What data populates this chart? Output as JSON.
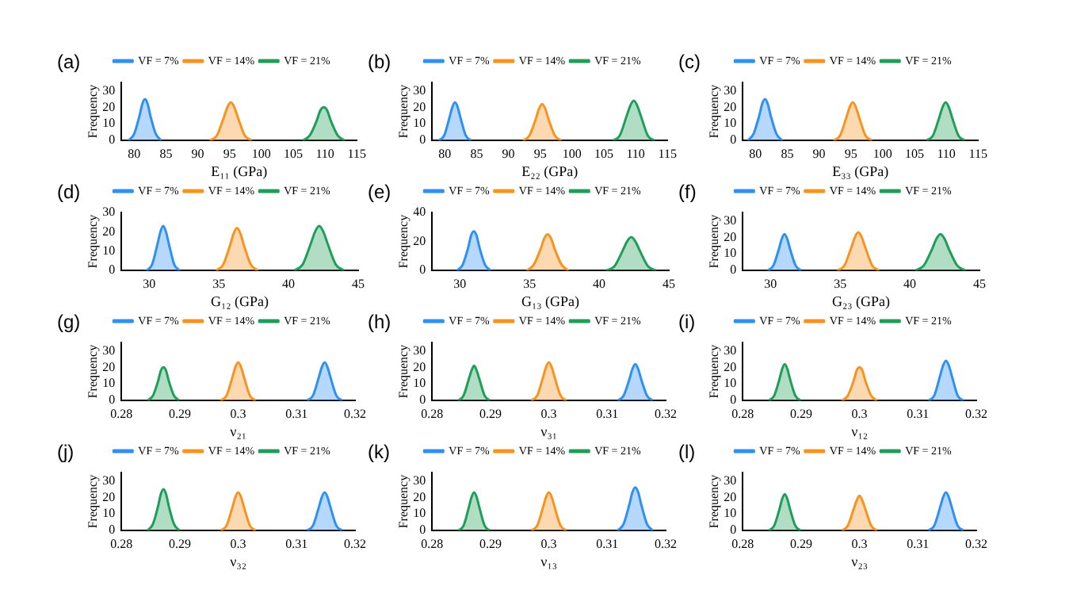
{
  "chart_data": [
    {
      "type": "area",
      "title": "(a)",
      "xlabel": "E₁₁ (GPa)",
      "ylabel": "Frequency",
      "xlim": [
        78,
        115
      ],
      "xticks": [
        80,
        85,
        90,
        95,
        100,
        105,
        110,
        115
      ],
      "ylim": [
        0,
        35
      ],
      "yticks": [
        0,
        10,
        20,
        30
      ],
      "legend": "top",
      "series": [
        {
          "name": "VF = 7%",
          "color": "#2e8ff5",
          "x": [
            79.15,
            80.0,
            80.85,
            81.28,
            81.7,
            82.13,
            82.55,
            83.4,
            84.25
          ],
          "values": [
            0,
            4,
            15,
            22,
            25,
            22,
            15,
            4,
            0
          ]
        },
        {
          "name": "VF = 14%",
          "color": "#f7931e",
          "x": [
            91.9,
            93.0,
            94.1,
            94.65,
            95.2,
            95.75,
            96.3,
            97.4,
            98.5
          ],
          "values": [
            0,
            3,
            14,
            20,
            23,
            20,
            14,
            3,
            0
          ]
        },
        {
          "name": "VF = 21%",
          "color": "#1f9e5a",
          "x": [
            106.5,
            107.6,
            108.7,
            109.25,
            109.8,
            110.35,
            110.9,
            112.0,
            113.1
          ],
          "values": [
            0,
            3,
            12,
            18,
            20,
            18,
            12,
            3,
            0
          ]
        }
      ]
    },
    {
      "type": "area",
      "title": "(b)",
      "xlabel": "E₂₂ (GPa)",
      "ylabel": "Frequency",
      "xlim": [
        78,
        115
      ],
      "xticks": [
        80,
        85,
        90,
        95,
        100,
        105,
        110,
        115
      ],
      "ylim": [
        0,
        35
      ],
      "yticks": [
        0,
        10,
        20,
        30
      ],
      "legend": "top",
      "series": [
        {
          "name": "VF = 7%",
          "color": "#2e8ff5",
          "x": [
            79.05,
            79.9,
            80.75,
            81.18,
            81.6,
            82.03,
            82.45,
            83.3,
            84.15
          ],
          "values": [
            0,
            3,
            14,
            20,
            23,
            20,
            14,
            3,
            0
          ]
        },
        {
          "name": "VF = 14%",
          "color": "#f7931e",
          "x": [
            92.3,
            93.3,
            94.3,
            94.8,
            95.3,
            95.8,
            96.3,
            97.3,
            98.3
          ],
          "values": [
            0,
            3,
            13,
            19,
            22,
            19,
            13,
            3,
            0
          ]
        },
        {
          "name": "VF = 21%",
          "color": "#1f9e5a",
          "x": [
            106.4,
            107.5,
            108.6,
            109.15,
            109.7,
            110.25,
            110.8,
            111.9,
            113.0
          ],
          "values": [
            0,
            3,
            15,
            21,
            24,
            21,
            15,
            3,
            0
          ]
        }
      ]
    },
    {
      "type": "area",
      "title": "(c)",
      "xlabel": "E₃₃ (GPa)",
      "ylabel": "Frequency",
      "xlim": [
        78,
        115
      ],
      "xticks": [
        80,
        85,
        90,
        95,
        100,
        105,
        110,
        115
      ],
      "ylim": [
        0,
        35
      ],
      "yticks": [
        0,
        10,
        20,
        30
      ],
      "legend": "top",
      "series": [
        {
          "name": "VF = 7%",
          "color": "#2e8ff5",
          "x": [
            78.8,
            79.7,
            80.6,
            81.05,
            81.5,
            81.95,
            82.4,
            83.3,
            84.2
          ],
          "values": [
            0,
            4,
            15,
            22,
            25,
            22,
            15,
            4,
            0
          ]
        },
        {
          "name": "VF = 14%",
          "color": "#f7931e",
          "x": [
            92.3,
            93.3,
            94.3,
            94.8,
            95.3,
            95.8,
            96.3,
            97.3,
            98.3
          ],
          "values": [
            0,
            3,
            14,
            20,
            23,
            20,
            14,
            3,
            0
          ]
        },
        {
          "name": "VF = 21%",
          "color": "#1f9e5a",
          "x": [
            106.9,
            107.9,
            108.9,
            109.4,
            109.9,
            110.4,
            110.9,
            111.9,
            112.9
          ],
          "values": [
            0,
            3,
            14,
            20,
            23,
            20,
            14,
            3,
            0
          ]
        }
      ]
    },
    {
      "type": "area",
      "title": "(d)",
      "xlabel": "G₁₂ (GPa)",
      "ylabel": "Frequency",
      "xlim": [
        28,
        45
      ],
      "xticks": [
        30,
        35,
        40,
        45
      ],
      "ylim": [
        0,
        30
      ],
      "yticks": [
        0,
        10,
        20,
        30
      ],
      "legend": "top",
      "series": [
        {
          "name": "VF = 7%",
          "color": "#2e8ff5",
          "x": [
            29.8,
            30.2,
            30.6,
            30.8,
            31.0,
            31.2,
            31.4,
            31.8,
            32.2
          ],
          "values": [
            0,
            3,
            14,
            20,
            23,
            20,
            14,
            3,
            0
          ]
        },
        {
          "name": "VF = 14%",
          "color": "#f7931e",
          "x": [
            34.8,
            35.3,
            35.8,
            36.05,
            36.3,
            36.55,
            36.8,
            37.3,
            37.8
          ],
          "values": [
            0,
            3,
            13,
            19,
            22,
            19,
            13,
            3,
            0
          ]
        },
        {
          "name": "VF = 21%",
          "color": "#1f9e5a",
          "x": [
            40.4,
            41.0,
            41.6,
            41.9,
            42.2,
            42.5,
            42.8,
            43.4,
            44.0
          ],
          "values": [
            0,
            3,
            14,
            20,
            23,
            20,
            14,
            3,
            0
          ]
        }
      ]
    },
    {
      "type": "area",
      "title": "(e)",
      "xlabel": "G₁₃ (GPa)",
      "ylabel": "Frequency",
      "xlim": [
        28,
        45
      ],
      "xticks": [
        30,
        35,
        40,
        45
      ],
      "ylim": [
        0,
        40
      ],
      "yticks": [
        0,
        20,
        40
      ],
      "legend": "top",
      "series": [
        {
          "name": "VF = 7%",
          "color": "#2e8ff5",
          "x": [
            29.8,
            30.2,
            30.6,
            30.8,
            31.0,
            31.2,
            31.4,
            31.8,
            32.2
          ],
          "values": [
            0,
            4,
            16,
            24,
            27,
            24,
            16,
            4,
            0
          ]
        },
        {
          "name": "VF = 14%",
          "color": "#f7931e",
          "x": [
            34.8,
            35.3,
            35.8,
            36.05,
            36.3,
            36.55,
            36.8,
            37.3,
            37.8
          ],
          "values": [
            0,
            4,
            15,
            22,
            25,
            22,
            15,
            4,
            0
          ]
        },
        {
          "name": "VF = 21%",
          "color": "#1f9e5a",
          "x": [
            40.5,
            41.1,
            41.7,
            42.0,
            42.3,
            42.6,
            42.9,
            43.5,
            44.1
          ],
          "values": [
            0,
            3,
            14,
            20,
            23,
            20,
            14,
            3,
            0
          ]
        }
      ]
    },
    {
      "type": "area",
      "title": "(f)",
      "xlabel": "G₂₃ (GPa)",
      "ylabel": "Frequency",
      "xlim": [
        28,
        45
      ],
      "xticks": [
        30,
        35,
        40,
        45
      ],
      "ylim": [
        0,
        35
      ],
      "yticks": [
        0,
        10,
        20,
        30
      ],
      "legend": "top",
      "series": [
        {
          "name": "VF = 7%",
          "color": "#2e8ff5",
          "x": [
            29.8,
            30.2,
            30.6,
            30.8,
            31.0,
            31.2,
            31.4,
            31.8,
            32.2
          ],
          "values": [
            0,
            3,
            13,
            19,
            22,
            19,
            13,
            3,
            0
          ]
        },
        {
          "name": "VF = 14%",
          "color": "#f7931e",
          "x": [
            34.8,
            35.3,
            35.8,
            36.05,
            36.3,
            36.55,
            36.8,
            37.3,
            37.8
          ],
          "values": [
            0,
            3,
            14,
            20,
            23,
            20,
            14,
            3,
            0
          ]
        },
        {
          "name": "VF = 21%",
          "color": "#1f9e5a",
          "x": [
            40.4,
            41.0,
            41.6,
            41.9,
            42.2,
            42.5,
            42.8,
            43.4,
            44.0
          ],
          "values": [
            0,
            3,
            13,
            19,
            22,
            19,
            13,
            3,
            0
          ]
        }
      ]
    },
    {
      "type": "area",
      "title": "(g)",
      "xlabel": "ν₂₁",
      "ylabel": "Frequency",
      "xlim": [
        0.28,
        0.32
      ],
      "xticks": [
        0.28,
        0.29,
        0.3,
        0.31,
        0.32
      ],
      "ylim": [
        0,
        35
      ],
      "yticks": [
        0,
        10,
        20,
        30
      ],
      "legend": "top",
      "series": [
        {
          "name": "VF = 7%",
          "color": "#2e8ff5",
          "x": [
            0.3118,
            0.3128,
            0.3138,
            0.3143,
            0.3148,
            0.3153,
            0.3158,
            0.3168,
            0.3178
          ],
          "values": [
            0,
            3,
            14,
            20,
            23,
            20,
            14,
            3,
            0
          ]
        },
        {
          "name": "VF = 14%",
          "color": "#f7931e",
          "x": [
            0.297,
            0.298,
            0.299,
            0.2995,
            0.3,
            0.3005,
            0.301,
            0.302,
            0.303
          ],
          "values": [
            0,
            3,
            14,
            20,
            23,
            20,
            14,
            3,
            0
          ]
        },
        {
          "name": "VF = 21%",
          "color": "#1f9e5a",
          "x": [
            0.2845,
            0.2854,
            0.2863,
            0.28675,
            0.2872,
            0.28765,
            0.2881,
            0.289,
            0.2899
          ],
          "values": [
            0,
            3,
            12,
            18,
            20,
            18,
            12,
            3,
            0
          ]
        }
      ]
    },
    {
      "type": "area",
      "title": "(h)",
      "xlabel": "ν₃₁",
      "ylabel": "Frequency",
      "xlim": [
        0.28,
        0.32
      ],
      "xticks": [
        0.28,
        0.29,
        0.3,
        0.31,
        0.32
      ],
      "ylim": [
        0,
        35
      ],
      "yticks": [
        0,
        10,
        20,
        30
      ],
      "legend": "top",
      "series": [
        {
          "name": "VF = 7%",
          "color": "#2e8ff5",
          "x": [
            0.3118,
            0.3128,
            0.3138,
            0.3143,
            0.3148,
            0.3153,
            0.3158,
            0.3168,
            0.3178
          ],
          "values": [
            0,
            3,
            13,
            19,
            22,
            19,
            13,
            3,
            0
          ]
        },
        {
          "name": "VF = 14%",
          "color": "#f7931e",
          "x": [
            0.297,
            0.298,
            0.299,
            0.2995,
            0.3,
            0.3005,
            0.301,
            0.302,
            0.303
          ],
          "values": [
            0,
            3,
            14,
            20,
            23,
            20,
            14,
            3,
            0
          ]
        },
        {
          "name": "VF = 21%",
          "color": "#1f9e5a",
          "x": [
            0.2845,
            0.2854,
            0.2863,
            0.28675,
            0.2872,
            0.28765,
            0.2881,
            0.289,
            0.2899
          ],
          "values": [
            0,
            3,
            13,
            18,
            21,
            18,
            13,
            3,
            0
          ]
        }
      ]
    },
    {
      "type": "area",
      "title": "(i)",
      "xlabel": "ν₁₂",
      "ylabel": "Frequency",
      "xlim": [
        0.28,
        0.32
      ],
      "xticks": [
        0.28,
        0.29,
        0.3,
        0.31,
        0.32
      ],
      "ylim": [
        0,
        35
      ],
      "yticks": [
        0,
        10,
        20,
        30
      ],
      "legend": "top",
      "series": [
        {
          "name": "VF = 7%",
          "color": "#2e8ff5",
          "x": [
            0.3118,
            0.3128,
            0.3138,
            0.3143,
            0.3148,
            0.3153,
            0.3158,
            0.3168,
            0.3178
          ],
          "values": [
            0,
            3,
            15,
            21,
            24,
            21,
            15,
            3,
            0
          ]
        },
        {
          "name": "VF = 14%",
          "color": "#f7931e",
          "x": [
            0.297,
            0.298,
            0.299,
            0.2995,
            0.3,
            0.3005,
            0.301,
            0.302,
            0.303
          ],
          "values": [
            0,
            3,
            12,
            18,
            20,
            18,
            12,
            3,
            0
          ]
        },
        {
          "name": "VF = 21%",
          "color": "#1f9e5a",
          "x": [
            0.2845,
            0.2854,
            0.2863,
            0.28675,
            0.2872,
            0.28765,
            0.2881,
            0.289,
            0.2899
          ],
          "values": [
            0,
            3,
            13,
            19,
            22,
            19,
            13,
            3,
            0
          ]
        }
      ]
    },
    {
      "type": "area",
      "title": "(j)",
      "xlabel": "ν₃₂",
      "ylabel": "Frequency",
      "xlim": [
        0.28,
        0.32
      ],
      "xticks": [
        0.28,
        0.29,
        0.3,
        0.31,
        0.32
      ],
      "ylim": [
        0,
        35
      ],
      "yticks": [
        0,
        10,
        20,
        30
      ],
      "legend": "top",
      "series": [
        {
          "name": "VF = 7%",
          "color": "#2e8ff5",
          "x": [
            0.3118,
            0.3128,
            0.3138,
            0.3143,
            0.3148,
            0.3153,
            0.3158,
            0.3168,
            0.3178
          ],
          "values": [
            0,
            3,
            14,
            20,
            23,
            20,
            14,
            3,
            0
          ]
        },
        {
          "name": "VF = 14%",
          "color": "#f7931e",
          "x": [
            0.297,
            0.298,
            0.299,
            0.2995,
            0.3,
            0.3005,
            0.301,
            0.302,
            0.303
          ],
          "values": [
            0,
            3,
            14,
            20,
            23,
            20,
            14,
            3,
            0
          ]
        },
        {
          "name": "VF = 21%",
          "color": "#1f9e5a",
          "x": [
            0.2845,
            0.2854,
            0.2863,
            0.28675,
            0.2872,
            0.28765,
            0.2881,
            0.289,
            0.2899
          ],
          "values": [
            0,
            4,
            15,
            22,
            25,
            22,
            15,
            4,
            0
          ]
        }
      ]
    },
    {
      "type": "area",
      "title": "(k)",
      "xlabel": "ν₁₃",
      "ylabel": "Frequency",
      "xlim": [
        0.28,
        0.32
      ],
      "xticks": [
        0.28,
        0.29,
        0.3,
        0.31,
        0.32
      ],
      "ylim": [
        0,
        35
      ],
      "yticks": [
        0,
        10,
        20,
        30
      ],
      "legend": "top",
      "series": [
        {
          "name": "VF = 7%",
          "color": "#2e8ff5",
          "x": [
            0.3118,
            0.3128,
            0.3138,
            0.3143,
            0.3148,
            0.3153,
            0.3158,
            0.3168,
            0.3178
          ],
          "values": [
            0,
            4,
            16,
            23,
            26,
            23,
            16,
            4,
            0
          ]
        },
        {
          "name": "VF = 14%",
          "color": "#f7931e",
          "x": [
            0.297,
            0.298,
            0.299,
            0.2995,
            0.3,
            0.3005,
            0.301,
            0.302,
            0.303
          ],
          "values": [
            0,
            3,
            14,
            20,
            23,
            20,
            14,
            3,
            0
          ]
        },
        {
          "name": "VF = 21%",
          "color": "#1f9e5a",
          "x": [
            0.2845,
            0.2854,
            0.2863,
            0.28675,
            0.2872,
            0.28765,
            0.2881,
            0.289,
            0.2899
          ],
          "values": [
            0,
            3,
            14,
            20,
            23,
            20,
            14,
            3,
            0
          ]
        }
      ]
    },
    {
      "type": "area",
      "title": "(l)",
      "xlabel": "ν₂₃",
      "ylabel": "Frequency",
      "xlim": [
        0.28,
        0.32
      ],
      "xticks": [
        0.28,
        0.29,
        0.3,
        0.31,
        0.32
      ],
      "ylim": [
        0,
        35
      ],
      "yticks": [
        0,
        10,
        20,
        30
      ],
      "legend": "top",
      "series": [
        {
          "name": "VF = 7%",
          "color": "#2e8ff5",
          "x": [
            0.3118,
            0.3128,
            0.3138,
            0.3143,
            0.3148,
            0.3153,
            0.3158,
            0.3168,
            0.3178
          ],
          "values": [
            0,
            3,
            14,
            20,
            23,
            20,
            14,
            3,
            0
          ]
        },
        {
          "name": "VF = 14%",
          "color": "#f7931e",
          "x": [
            0.297,
            0.298,
            0.299,
            0.2995,
            0.3,
            0.3005,
            0.301,
            0.302,
            0.303
          ],
          "values": [
            0,
            3,
            13,
            18,
            21,
            18,
            13,
            3,
            0
          ]
        },
        {
          "name": "VF = 21%",
          "color": "#1f9e5a",
          "x": [
            0.2845,
            0.2854,
            0.2863,
            0.28675,
            0.2872,
            0.28765,
            0.2881,
            0.289,
            0.2899
          ],
          "values": [
            0,
            3,
            13,
            19,
            22,
            19,
            13,
            3,
            0
          ]
        }
      ]
    }
  ]
}
